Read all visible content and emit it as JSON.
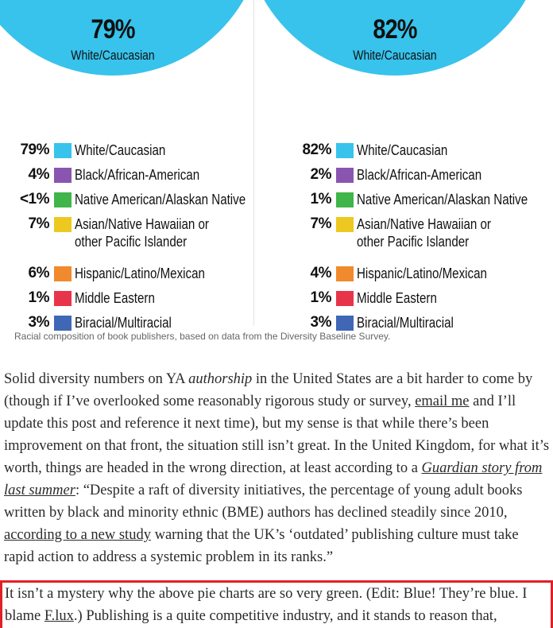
{
  "chart_data": [
    {
      "type": "pie",
      "title": "",
      "center_percent": "79%",
      "center_label": "White/Caucasian",
      "categories": [
        "White/Caucasian",
        "Black/African-American",
        "Native American/Alaskan Native",
        "Asian/Native Hawaiian or other Pacific Islander",
        "Hispanic/Latino/Mexican",
        "Middle Eastern",
        "Biracial/Multiracial"
      ],
      "values": [
        79,
        4,
        0.5,
        7,
        6,
        1,
        3
      ],
      "value_labels": [
        "79%",
        "4%",
        "<1%",
        "7%",
        "6%",
        "1%",
        "3%"
      ],
      "colors": [
        "#37c3ec",
        "#8a55b0",
        "#3fb54a",
        "#ecc821",
        "#f08a2c",
        "#e8344a",
        "#3f67b5"
      ]
    },
    {
      "type": "pie",
      "title": "",
      "center_percent": "82%",
      "center_label": "White/Caucasian",
      "categories": [
        "White/Caucasian",
        "Black/African-American",
        "Native American/Alaskan Native",
        "Asian/Native Hawaiian or other Pacific Islander",
        "Hispanic/Latino/Mexican",
        "Middle Eastern",
        "Biracial/Multiracial"
      ],
      "values": [
        82,
        2,
        1,
        7,
        4,
        1,
        3
      ],
      "value_labels": [
        "82%",
        "2%",
        "1%",
        "7%",
        "4%",
        "1%",
        "3%"
      ],
      "colors": [
        "#37c3ec",
        "#8a55b0",
        "#3fb54a",
        "#ecc821",
        "#f08a2c",
        "#e8344a",
        "#3f67b5"
      ]
    }
  ],
  "legend_lines": [
    [
      "White/Caucasian"
    ],
    [
      "Black/African-American"
    ],
    [
      "Native American/Alaskan Native"
    ],
    [
      "Asian/Native Hawaiian or",
      "other Pacific Islander"
    ],
    [
      "Hispanic/Latino/Mexican"
    ],
    [
      "Middle Eastern"
    ],
    [
      "Biracial/Multiracial"
    ]
  ],
  "caption": "Racial composition of book publishers, based on data from the Diversity Baseline Survey.",
  "paragraph1": {
    "t1": "Solid diversity numbers on YA ",
    "em1": "authorship",
    "t2": " in the United States are a bit harder to come by (though if I’ve overlooked some reasonably rigorous study or survey, ",
    "link1": "email me",
    "t3": " and I’ll update this post and reference it next time), but my sense is that while there’s been improvement on that front, the situation still isn’t great. In the United Kingdom, for what it’s worth, things are headed in the wrong direction, at least according to a ",
    "link2": "Guardian story from last summer",
    "t4": ": “Despite a raft of diversity initiatives, the percentage of young adult books written by black and minority ethnic (BME) authors has declined steadily since 2010, ",
    "link3": "according to a new study",
    "t5": " warning that the UK’s ‘outdated’ publishing culture must take rapid action to address a systemic problem in its ranks.”"
  },
  "paragraph2": {
    "t1": "It isn’t a mystery why the above pie charts are so very green. (Edit: Blue! They’re blue. I blame ",
    "link1": "F.lux",
    "t2": ".) Publishing is a quite competitive industry, and it stands to reason that,"
  },
  "highlight_color": "#e21f26"
}
